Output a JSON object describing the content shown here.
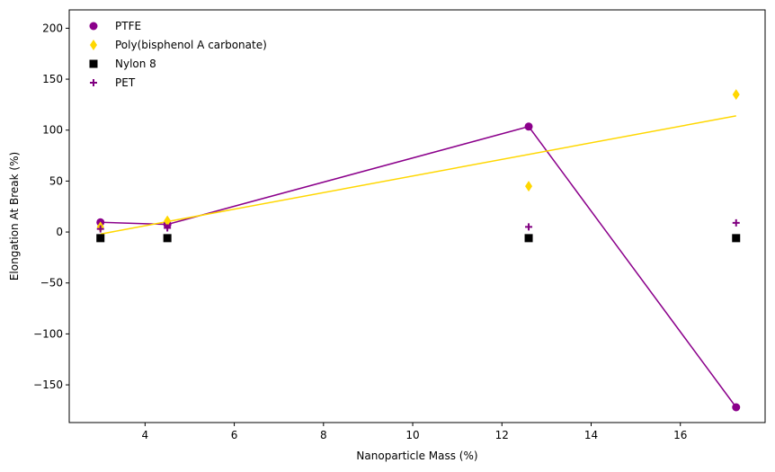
{
  "chart_data": {
    "type": "scatter",
    "title": "",
    "xlabel": "Nanoparticle Mass (%)",
    "ylabel": "Elongation At Break (%)",
    "xlim": [
      2.3,
      17.9
    ],
    "ylim": [
      -187,
      218
    ],
    "xticks": [
      4,
      6,
      8,
      10,
      12,
      14,
      16
    ],
    "yticks": [
      -150,
      -100,
      -50,
      0,
      50,
      100,
      150,
      200
    ],
    "x": [
      3.0,
      4.5,
      12.6,
      17.25
    ],
    "grid": false,
    "legend_position": "top-left",
    "series": [
      {
        "name": "PTFE",
        "marker": "circle",
        "color": "#8b008b",
        "values": [
          9.5,
          7.5,
          103.5,
          -172
        ],
        "line": "connect",
        "line_color": "#8b008b"
      },
      {
        "name": "Poly(bisphenol A carbonate)",
        "marker": "diamond",
        "color": "#ffd700",
        "values": [
          5,
          11,
          45,
          135
        ],
        "line": "fit",
        "fit_endpoints": [
          -2,
          114
        ],
        "line_color": "#ffd700"
      },
      {
        "name": "Nylon 8",
        "marker": "square",
        "color": "#000000",
        "values": [
          -6,
          -6,
          -6,
          -6
        ],
        "line": "none"
      },
      {
        "name": "PET",
        "marker": "plus",
        "color": "#800080",
        "values": [
          3,
          4,
          5,
          9
        ],
        "line": "none"
      }
    ]
  }
}
